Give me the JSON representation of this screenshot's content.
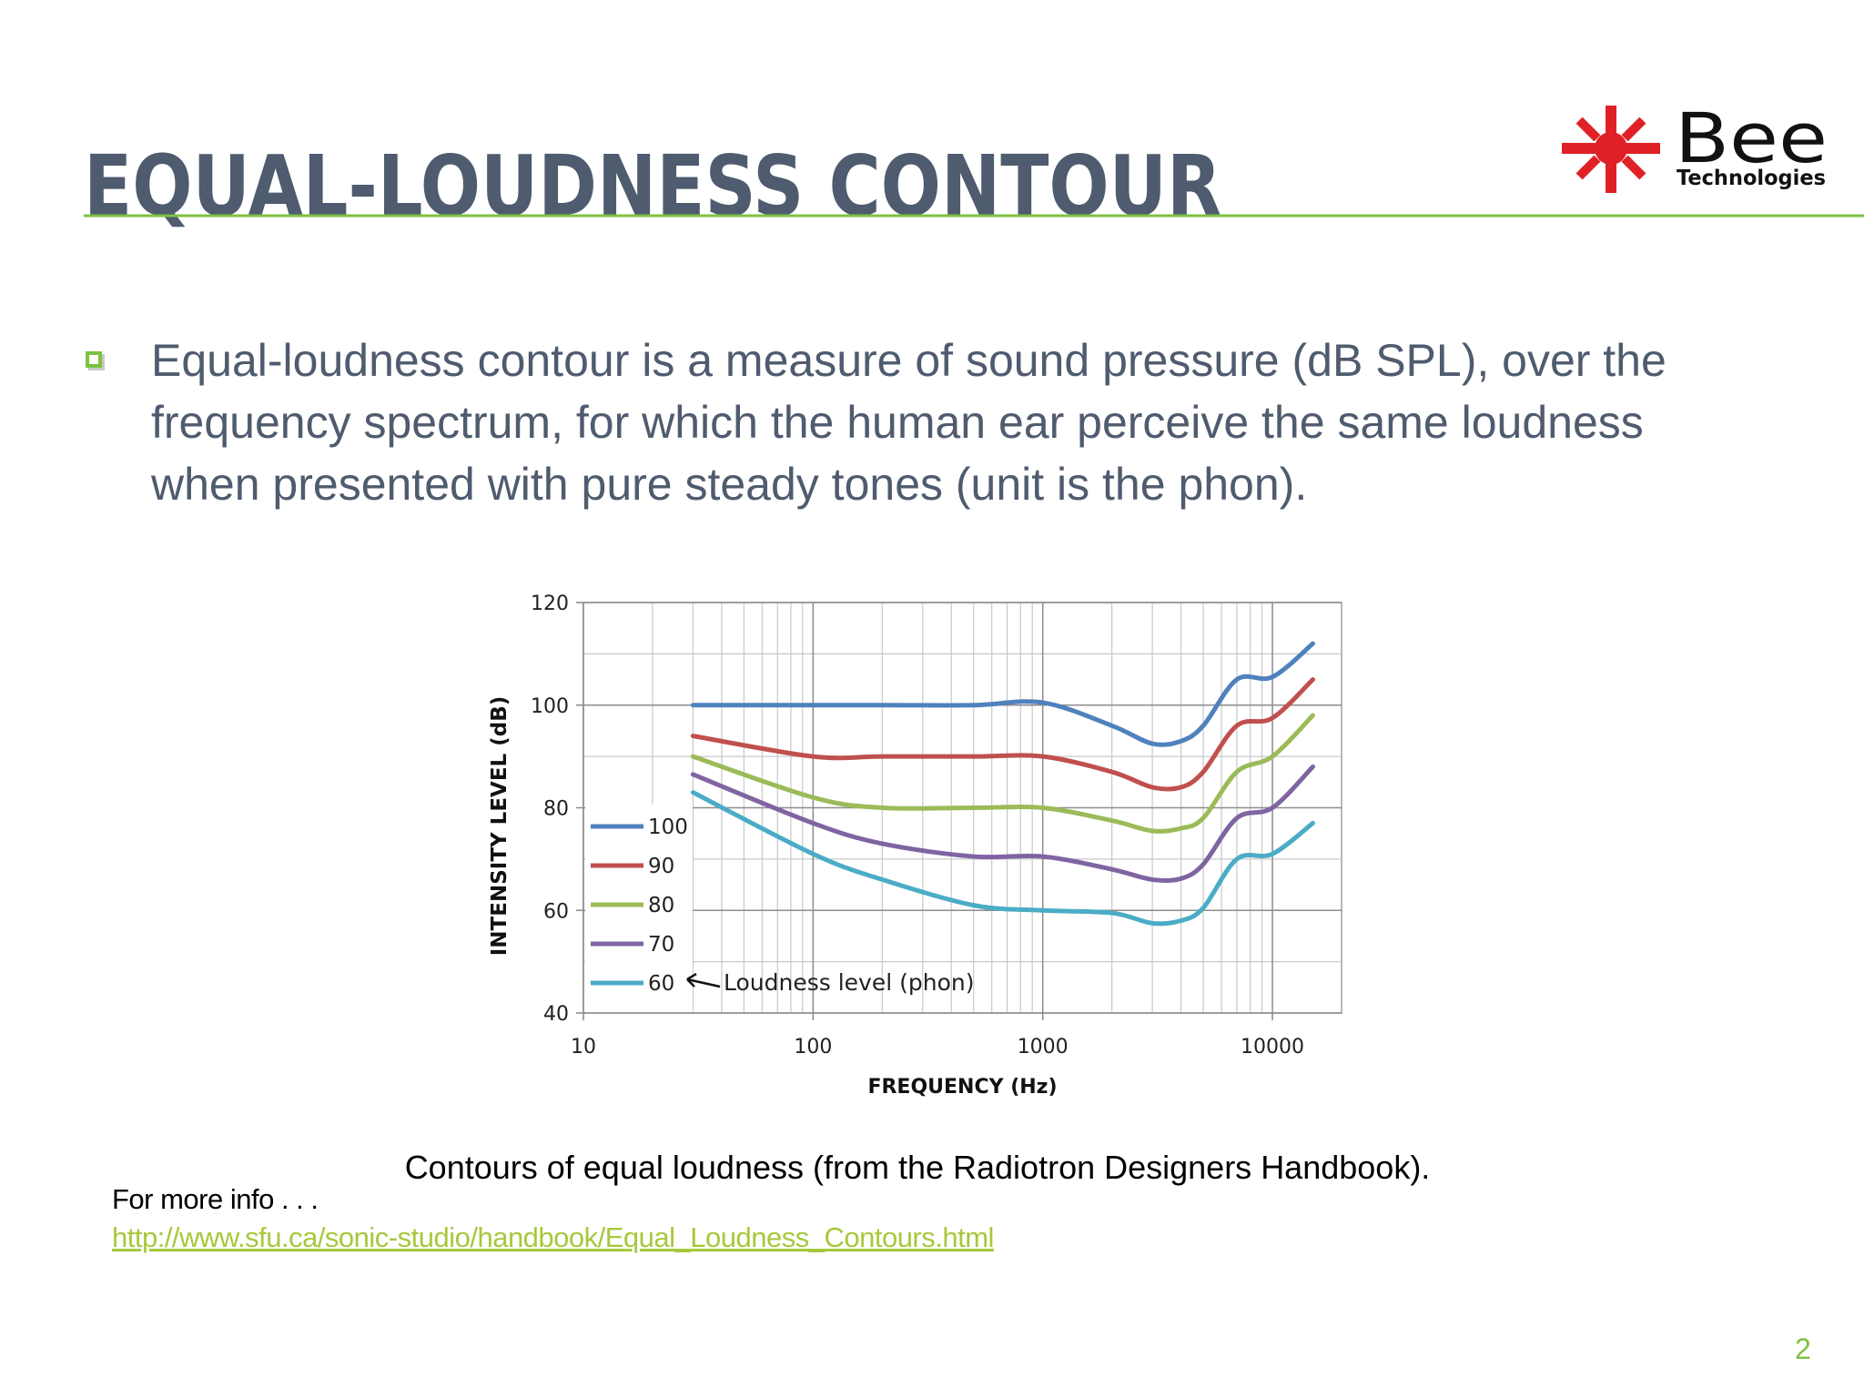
{
  "header": {
    "title": "EQUAL-LOUDNESS CONTOUR",
    "logo": {
      "name": "Bee",
      "tagline": "Technologies"
    }
  },
  "bullet": "Equal-loudness contour is a measure of sound pressure (dB SPL), over the frequency spectrum, for which the human ear perceive the same loudness when presented with pure steady tones (unit is the phon).",
  "chart_data": {
    "type": "line",
    "x_label": "FREQUENCY (Hz)",
    "y_label": "INTENSITY LEVEL (dB)",
    "xscale": "log",
    "xlim": [
      10,
      20000
    ],
    "ylim": [
      40,
      120
    ],
    "xticks": [
      10,
      100,
      1000,
      10000
    ],
    "yticks": [
      40,
      60,
      80,
      100,
      120
    ],
    "grid": true,
    "minor_grid": true,
    "legend": "lower left",
    "annotation": "Loudness level (phon)",
    "x": [
      30,
      100,
      200,
      500,
      1000,
      2000,
      3000,
      4000,
      5000,
      7000,
      10000,
      15000
    ],
    "series": [
      {
        "name": "100",
        "color": "#4f81bd",
        "values": [
          100,
          100,
          100,
          100,
          100.5,
          96,
          92.5,
          93,
          96,
          105,
          105.5,
          112
        ]
      },
      {
        "name": "90",
        "color": "#c0504d",
        "values": [
          94,
          90,
          90,
          90,
          90,
          87,
          84,
          84,
          87,
          96,
          97.5,
          105
        ]
      },
      {
        "name": "80",
        "color": "#9bbb59",
        "values": [
          90,
          82,
          80,
          80,
          80,
          77.5,
          75.5,
          76,
          78,
          87,
          90,
          98
        ]
      },
      {
        "name": "70",
        "color": "#8064a2",
        "values": [
          86.5,
          77,
          73,
          70.5,
          70.5,
          68,
          66,
          66.2,
          69,
          78,
          80,
          88
        ]
      },
      {
        "name": "60",
        "color": "#4bacc6",
        "values": [
          83,
          71,
          66,
          61,
          60,
          59.5,
          57.5,
          58,
          60.5,
          70,
          71,
          77
        ]
      }
    ]
  },
  "caption": "Contours of equal loudness (from the Radiotron Designers Handbook).",
  "more_info": {
    "label": "For more info . . .",
    "url": "http://www.sfu.ca/sonic-studio/handbook/Equal_Loudness_Contours.html"
  },
  "page_number": 2
}
